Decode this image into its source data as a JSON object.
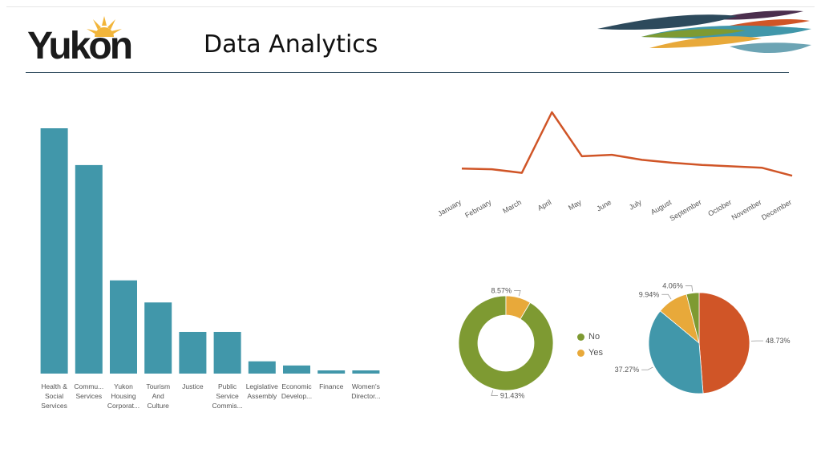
{
  "header": {
    "logo_text": "Yukon",
    "title": "Data Analytics"
  },
  "colors": {
    "teal": "#4197aa",
    "orange": "#d05527",
    "green": "#7e9a32",
    "yellow": "#e8a93a",
    "rule": "#2d4a5c"
  },
  "chart_data": [
    {
      "type": "bar",
      "categories": [
        [
          "Health &",
          "Social",
          "Services"
        ],
        [
          "Commu...",
          "Services"
        ],
        [
          "Yukon",
          "Housing",
          "Corporat..."
        ],
        [
          "Tourism",
          "And",
          "Culture"
        ],
        [
          "Justice"
        ],
        [
          "Public",
          "Service",
          "Commis..."
        ],
        [
          "Legislative",
          "Assembly"
        ],
        [
          "Economic",
          "Develop..."
        ],
        [
          "Finance"
        ],
        [
          "Women's",
          "Director..."
        ]
      ],
      "values": [
        100,
        85,
        38,
        29,
        17,
        17,
        5,
        3.3,
        1.3,
        1.3
      ],
      "ylim": [
        0,
        100
      ],
      "color": "#4197aa"
    },
    {
      "type": "line",
      "x": [
        "January",
        "February",
        "March",
        "April",
        "May",
        "June",
        "July",
        "August",
        "September",
        "October",
        "November",
        "December"
      ],
      "values": [
        22,
        21,
        16,
        100,
        39,
        41,
        34,
        30,
        27,
        25,
        23,
        12
      ],
      "ylim": [
        0,
        100
      ],
      "color": "#d05527"
    },
    {
      "type": "pie",
      "donut": true,
      "slices": [
        {
          "label": "No",
          "value": 91.43,
          "text": "91.43%",
          "color": "#7e9a32"
        },
        {
          "label": "Yes",
          "value": 8.57,
          "text": "8.57%",
          "color": "#e8a93a"
        }
      ],
      "legend": [
        "No",
        "Yes"
      ]
    },
    {
      "type": "pie",
      "slices": [
        {
          "value": 48.73,
          "text": "48.73%",
          "color": "#d05527"
        },
        {
          "value": 37.27,
          "text": "37.27%",
          "color": "#4197aa"
        },
        {
          "value": 9.94,
          "text": "9.94%",
          "color": "#e8a93a"
        },
        {
          "value": 4.06,
          "text": "4.06%",
          "color": "#7e9a32"
        }
      ]
    }
  ]
}
